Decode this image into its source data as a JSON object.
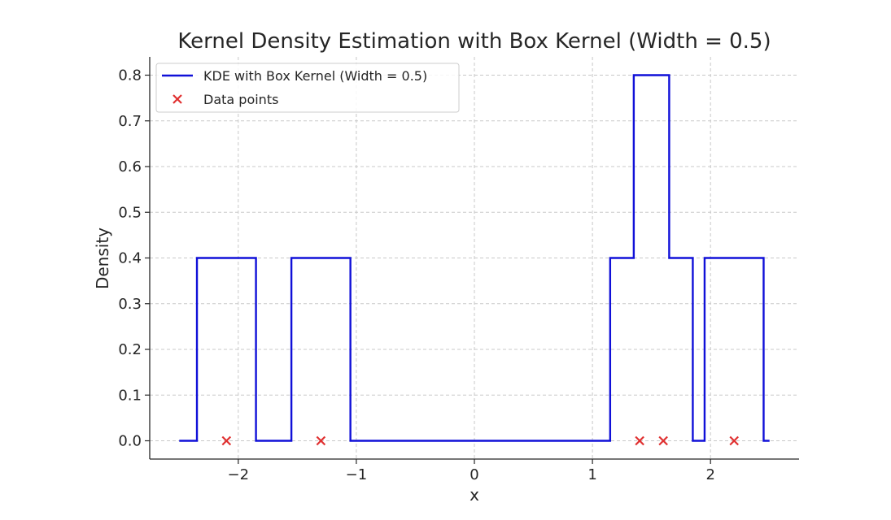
{
  "chart_data": {
    "type": "line",
    "title": "Kernel Density Estimation with Box Kernel (Width = 0.5)",
    "xlabel": "x",
    "ylabel": "Density",
    "xlim": [
      -2.75,
      2.75
    ],
    "ylim": [
      -0.04,
      0.84
    ],
    "grid": true,
    "legend_position": "top-left",
    "x_ticks": [
      -2,
      -1,
      0,
      1,
      2
    ],
    "x_tick_labels": [
      "−2",
      "−1",
      "0",
      "1",
      "2"
    ],
    "y_ticks": [
      0.0,
      0.1,
      0.2,
      0.3,
      0.4,
      0.5,
      0.6,
      0.7,
      0.8
    ],
    "y_tick_labels": [
      "0.0",
      "0.1",
      "0.2",
      "0.3",
      "0.4",
      "0.5",
      "0.6",
      "0.7",
      "0.8"
    ],
    "series": [
      {
        "name": "KDE with Box Kernel (Width = 0.5)",
        "kind": "step-line",
        "color": "#1010d8",
        "points": [
          [
            -2.5,
            0.0
          ],
          [
            -2.35,
            0.0
          ],
          [
            -2.35,
            0.4
          ],
          [
            -1.85,
            0.4
          ],
          [
            -1.85,
            0.0
          ],
          [
            -1.55,
            0.0
          ],
          [
            -1.55,
            0.4
          ],
          [
            -1.05,
            0.4
          ],
          [
            -1.05,
            0.0
          ],
          [
            1.15,
            0.0
          ],
          [
            1.15,
            0.4
          ],
          [
            1.35,
            0.4
          ],
          [
            1.35,
            0.8
          ],
          [
            1.65,
            0.8
          ],
          [
            1.65,
            0.4
          ],
          [
            1.85,
            0.4
          ],
          [
            1.85,
            0.0
          ],
          [
            1.95,
            0.0
          ],
          [
            1.95,
            0.4
          ],
          [
            2.45,
            0.4
          ],
          [
            2.45,
            0.0
          ],
          [
            2.5,
            0.0
          ]
        ]
      },
      {
        "name": "Data points",
        "kind": "scatter",
        "marker": "x",
        "color": "#e03030",
        "x": [
          -2.1,
          -1.3,
          1.4,
          1.6,
          2.2
        ],
        "y": [
          0.0,
          0.0,
          0.0,
          0.0,
          0.0
        ]
      }
    ]
  }
}
